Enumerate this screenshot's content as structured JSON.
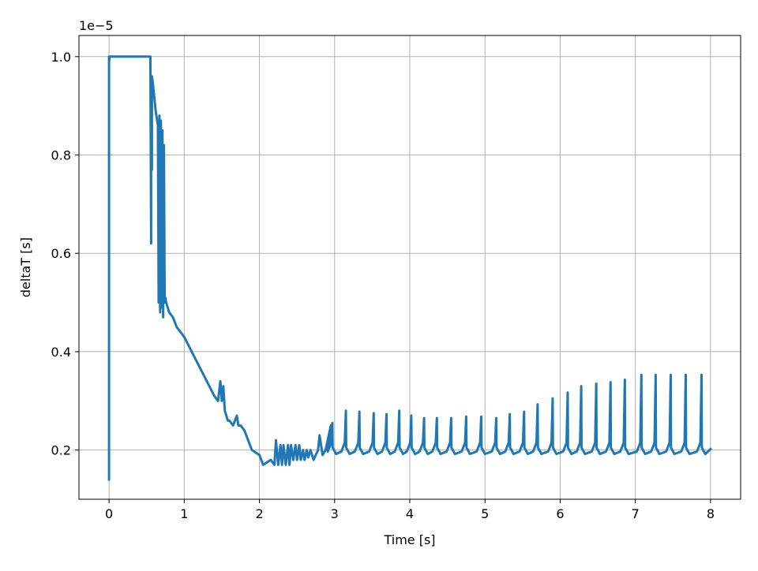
{
  "chart_data": {
    "type": "line",
    "title": "",
    "xlabel": "Time [s]",
    "ylabel": "deltaT [s]",
    "offset_text": "1e−5",
    "xlim": [
      -0.4,
      8.4
    ],
    "ylim": [
      0.1,
      1.043
    ],
    "x_ticks": [
      0,
      1,
      2,
      3,
      4,
      5,
      6,
      7,
      8
    ],
    "x_tick_labels": [
      "0",
      "1",
      "2",
      "3",
      "4",
      "5",
      "6",
      "7",
      "8"
    ],
    "y_ticks": [
      0.2,
      0.4,
      0.6,
      0.8,
      1.0
    ],
    "y_tick_labels": [
      "0.2",
      "0.4",
      "0.6",
      "0.8",
      "1.0"
    ],
    "grid": true,
    "line_color": "#1f77b4",
    "series": [
      {
        "x": [
          0.0,
          0.0,
          0.0,
          0.01,
          0.3,
          0.55,
          0.56,
          0.56,
          0.57,
          0.57,
          0.58,
          0.6,
          0.62,
          0.65,
          0.66,
          0.67,
          0.68,
          0.69,
          0.7,
          0.71,
          0.72,
          0.73,
          0.74,
          0.75,
          0.76,
          0.78,
          0.8,
          0.85,
          0.9,
          1.0,
          1.1,
          1.2,
          1.3,
          1.4,
          1.45,
          1.48,
          1.5,
          1.52,
          1.54,
          1.56,
          1.58,
          1.6,
          1.65,
          1.7,
          1.72,
          1.75,
          1.8,
          1.85,
          1.9,
          2.0,
          2.05,
          2.1,
          2.15,
          2.2,
          2.22,
          2.25,
          2.28,
          2.3,
          2.32,
          2.35,
          2.38,
          2.4,
          2.42,
          2.45,
          2.48,
          2.5,
          2.53,
          2.55,
          2.58,
          2.6,
          2.63,
          2.65,
          2.68,
          2.72,
          2.75,
          2.78,
          2.8,
          2.84,
          2.88,
          2.95
        ],
        "y": [
          0.14,
          1.0,
          0.99,
          1.0,
          1.0,
          1.0,
          0.62,
          0.85,
          0.77,
          0.96,
          0.95,
          0.92,
          0.89,
          0.86,
          0.5,
          0.88,
          0.48,
          0.87,
          0.49,
          0.85,
          0.47,
          0.82,
          0.5,
          0.51,
          0.5,
          0.49,
          0.48,
          0.47,
          0.45,
          0.43,
          0.4,
          0.37,
          0.34,
          0.31,
          0.3,
          0.34,
          0.3,
          0.33,
          0.28,
          0.27,
          0.26,
          0.26,
          0.25,
          0.27,
          0.25,
          0.25,
          0.24,
          0.22,
          0.2,
          0.19,
          0.17,
          0.175,
          0.18,
          0.17,
          0.22,
          0.17,
          0.21,
          0.17,
          0.21,
          0.17,
          0.21,
          0.17,
          0.21,
          0.18,
          0.21,
          0.18,
          0.21,
          0.18,
          0.2,
          0.18,
          0.2,
          0.185,
          0.2,
          0.18,
          0.19,
          0.2,
          0.23,
          0.19,
          0.2,
          0.25
        ],
        "spikes": [
          {
            "x": 2.97,
            "peak": 0.255
          },
          {
            "x": 3.15,
            "peak": 0.28
          },
          {
            "x": 3.33,
            "peak": 0.278
          },
          {
            "x": 3.52,
            "peak": 0.275
          },
          {
            "x": 3.69,
            "peak": 0.273
          },
          {
            "x": 3.86,
            "peak": 0.28
          },
          {
            "x": 4.02,
            "peak": 0.27
          },
          {
            "x": 4.19,
            "peak": 0.265
          },
          {
            "x": 4.36,
            "peak": 0.265
          },
          {
            "x": 4.55,
            "peak": 0.265
          },
          {
            "x": 4.75,
            "peak": 0.268
          },
          {
            "x": 4.95,
            "peak": 0.268
          },
          {
            "x": 5.15,
            "peak": 0.265
          },
          {
            "x": 5.33,
            "peak": 0.273
          },
          {
            "x": 5.52,
            "peak": 0.278
          },
          {
            "x": 5.7,
            "peak": 0.293
          },
          {
            "x": 5.9,
            "peak": 0.305
          },
          {
            "x": 6.1,
            "peak": 0.317
          },
          {
            "x": 6.28,
            "peak": 0.33
          },
          {
            "x": 6.48,
            "peak": 0.335
          },
          {
            "x": 6.67,
            "peak": 0.338
          },
          {
            "x": 6.86,
            "peak": 0.343
          },
          {
            "x": 7.08,
            "peak": 0.353
          },
          {
            "x": 7.27,
            "peak": 0.353
          },
          {
            "x": 7.47,
            "peak": 0.353
          },
          {
            "x": 7.67,
            "peak": 0.353
          },
          {
            "x": 7.88,
            "peak": 0.353
          }
        ],
        "spike_base": 0.195,
        "end_point": {
          "x": 8.0,
          "y": 0.202
        }
      }
    ]
  }
}
